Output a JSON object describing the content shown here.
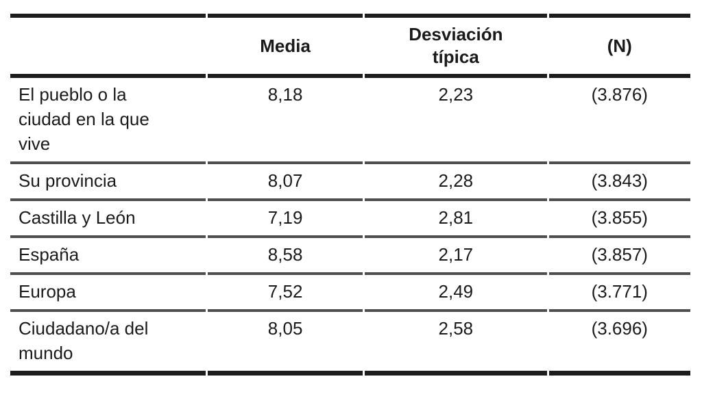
{
  "table": {
    "columns": [
      {
        "key": "label",
        "label": ""
      },
      {
        "key": "media",
        "label": "Media"
      },
      {
        "key": "desviacion",
        "label": "Desviación típica"
      },
      {
        "key": "n",
        "label": "(N)"
      }
    ],
    "rows": [
      {
        "label": "El pueblo o la ciudad en la que vive",
        "media": "8,18",
        "desviacion": "2,23",
        "n": "(3.876)"
      },
      {
        "label": "Su provincia",
        "media": "8,07",
        "desviacion": "2,28",
        "n": "(3.843)"
      },
      {
        "label": "Castilla y León",
        "media": "7,19",
        "desviacion": "2,81",
        "n": "(3.855)"
      },
      {
        "label": "España",
        "media": "8,58",
        "desviacion": "2,17",
        "n": "(3.857)"
      },
      {
        "label": "Europa",
        "media": "7,52",
        "desviacion": "2,49",
        "n": "(3.771)"
      },
      {
        "label": "Ciudadano/a del mundo",
        "media": "8,05",
        "desviacion": "2,58",
        "n": "(3.696)"
      }
    ]
  },
  "colors": {
    "background": "#ffffff",
    "text": "#1a1a1a",
    "rule_heavy": "#1d1d1d",
    "rule_light": "#4e4e4e"
  }
}
